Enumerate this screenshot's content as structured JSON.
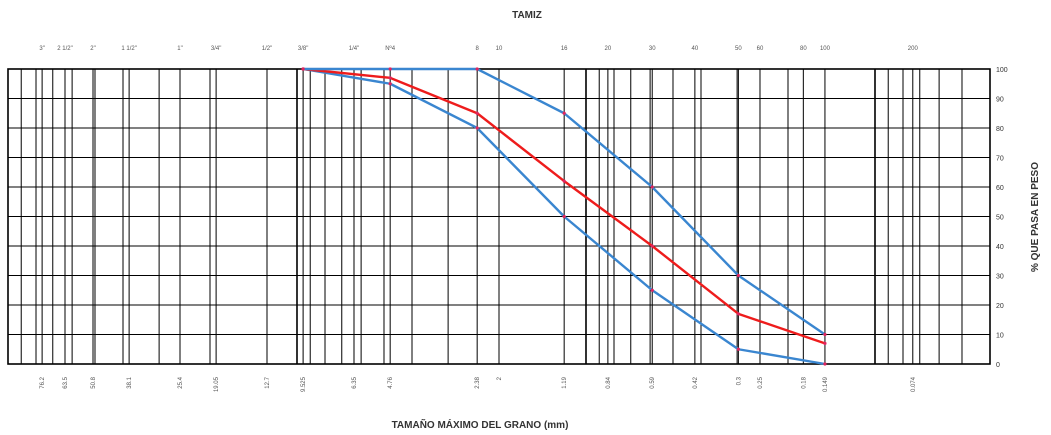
{
  "chart_data": {
    "type": "line",
    "title": "TAMIZ",
    "xlabel": "TAMAÑO MÁXIMO DEL GRANO (mm)",
    "ylabel": "% QUE PASA EN PESO",
    "x_scale": "log",
    "x_direction": "decreasing",
    "xlim": [
      100,
      0.04
    ],
    "ylim": [
      0,
      100
    ],
    "yticks": [
      0,
      10,
      20,
      30,
      40,
      50,
      60,
      70,
      80,
      90,
      100
    ],
    "grid": true,
    "sieves": [
      {
        "name": "3\"",
        "mm": 76.2,
        "mm_label": "76.2"
      },
      {
        "name": "2 1/2\"",
        "mm": 63.5,
        "mm_label": "63.5"
      },
      {
        "name": "2\"",
        "mm": 50.8,
        "mm_label": "50.8"
      },
      {
        "name": "1 1/2\"",
        "mm": 38.1,
        "mm_label": "38.1"
      },
      {
        "name": "1\"",
        "mm": 25.4,
        "mm_label": "25.4"
      },
      {
        "name": "3/4\"",
        "mm": 19.05,
        "mm_label": "19.05"
      },
      {
        "name": "1/2\"",
        "mm": 12.7,
        "mm_label": "12.7"
      },
      {
        "name": "3/8\"",
        "mm": 9.525,
        "mm_label": "9.525"
      },
      {
        "name": "1/4\"",
        "mm": 6.35,
        "mm_label": "6.35"
      },
      {
        "name": "Nº4",
        "mm": 4.76,
        "mm_label": "4.76"
      },
      {
        "name": "8",
        "mm": 2.38,
        "mm_label": "2.38"
      },
      {
        "name": "10",
        "mm": 2.0,
        "mm_label": "2"
      },
      {
        "name": "16",
        "mm": 1.19,
        "mm_label": "1.19"
      },
      {
        "name": "20",
        "mm": 0.84,
        "mm_label": "0.84"
      },
      {
        "name": "30",
        "mm": 0.59,
        "mm_label": "0.59"
      },
      {
        "name": "40",
        "mm": 0.42,
        "mm_label": "0.42"
      },
      {
        "name": "50",
        "mm": 0.297,
        "mm_label": "0.3"
      },
      {
        "name": "60",
        "mm": 0.25,
        "mm_label": "0.25"
      },
      {
        "name": "80",
        "mm": 0.177,
        "mm_label": "0.18"
      },
      {
        "name": "100",
        "mm": 0.149,
        "mm_label": "0.149"
      },
      {
        "name": "200",
        "mm": 0.074,
        "mm_label": "0.074"
      }
    ],
    "series": [
      {
        "color": "#3a86d0",
        "x": [
          9.525,
          4.76,
          2.38,
          1.19,
          0.59,
          0.297,
          0.149
        ],
        "y": [
          100,
          95,
          80,
          50,
          25,
          5,
          0
        ]
      },
      {
        "color": "#ee1c1c",
        "x": [
          9.525,
          4.76,
          2.38,
          1.19,
          0.59,
          0.297,
          0.149
        ],
        "y": [
          100,
          97,
          85,
          62,
          40,
          17,
          7
        ]
      },
      {
        "color": "#3a86d0",
        "x": [
          9.525,
          4.76,
          2.38,
          1.19,
          0.59,
          0.297,
          0.149
        ],
        "y": [
          100,
          100,
          100,
          85,
          60,
          30,
          10
        ]
      }
    ]
  }
}
